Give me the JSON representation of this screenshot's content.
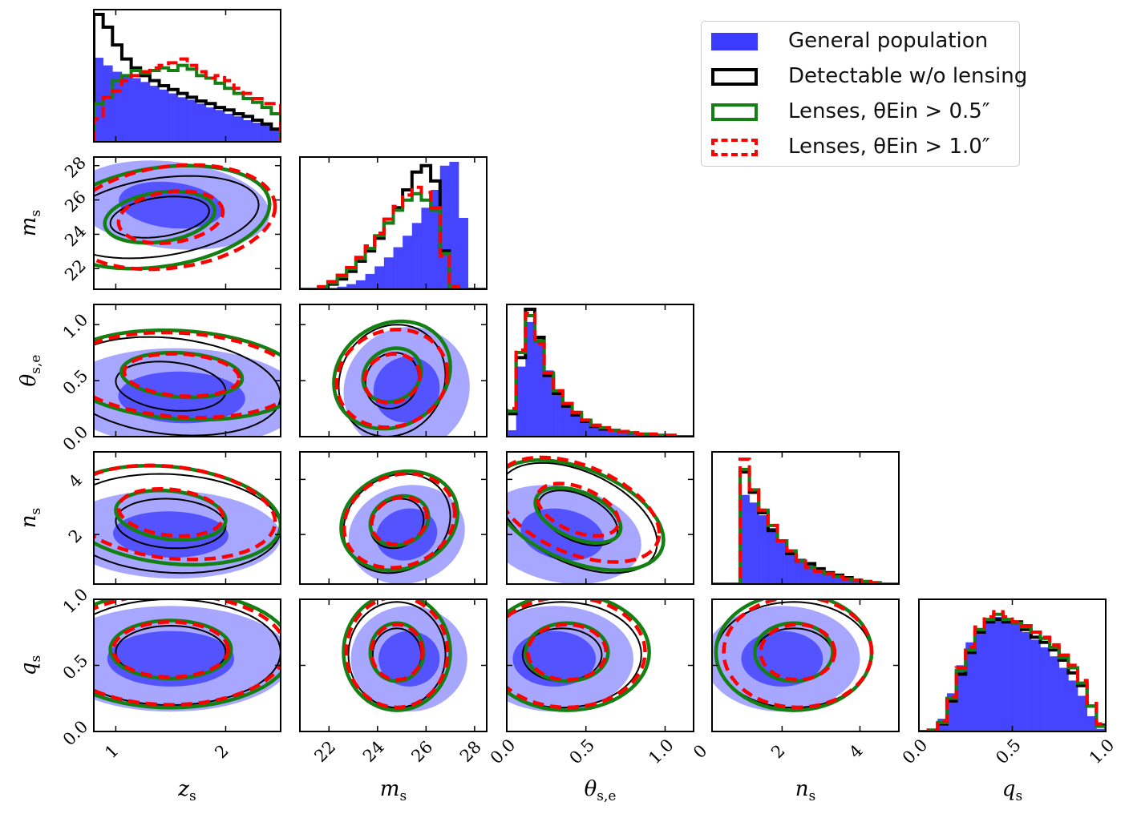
{
  "legend": [
    {
      "label": "General population",
      "color": "#3b3bff",
      "style": "filled"
    },
    {
      "label": "Detectable w/o lensing",
      "color": "#000000",
      "style": "solid"
    },
    {
      "label": "Lenses, θEin > 0.5″",
      "color": "#128012",
      "style": "solid"
    },
    {
      "label": "Lenses, θEin > 1.0″",
      "color": "#ff0000",
      "style": "dashed"
    }
  ],
  "chart_data": {
    "type": "corner",
    "params": [
      "z_s",
      "m_s",
      "θ_s,e",
      "n_s",
      "q_s"
    ],
    "axis_labels": {
      "x": [
        "zs",
        "ms",
        "θs,e",
        "ns",
        "qs"
      ],
      "y": [
        "",
        "ms",
        "θs,e",
        "ns",
        "qs"
      ]
    },
    "ranges": [
      [
        0.8,
        2.5
      ],
      [
        20.8,
        28.5
      ],
      [
        0.0,
        1.18
      ],
      [
        0.2,
        5.0
      ],
      [
        0.0,
        1.0
      ]
    ],
    "ticks": [
      {
        "values": [
          1,
          2
        ],
        "labels": [
          "1",
          "2"
        ]
      },
      {
        "values": [
          22,
          24,
          26,
          28
        ],
        "labels": [
          "22",
          "24",
          "26",
          "28"
        ]
      },
      {
        "values": [
          0.0,
          0.5,
          1.0
        ],
        "labels": [
          "0.0",
          "0.5",
          "1.0"
        ]
      },
      {
        "values": [
          0,
          2,
          4
        ],
        "labels": [
          "0",
          "2",
          "4"
        ]
      },
      {
        "values": [
          0.0,
          0.5,
          1.0
        ],
        "labels": [
          "0.0",
          "0.5",
          "1.0"
        ]
      }
    ],
    "y_ticks": [
      null,
      {
        "values": [
          22,
          24,
          26,
          28
        ],
        "labels": [
          "22",
          "24",
          "26",
          "28"
        ]
      },
      {
        "values": [
          0.0,
          0.5,
          1.0
        ],
        "labels": [
          "0.0",
          "0.5",
          "1.0"
        ]
      },
      {
        "values": [
          2,
          4
        ],
        "labels": [
          "2",
          "4"
        ]
      },
      {
        "values": [
          0.0,
          0.5,
          1.0
        ],
        "labels": [
          "0.0",
          "0.5",
          "1.0"
        ]
      }
    ],
    "series": [
      {
        "name": "General population",
        "color": "#3b3bff",
        "style": "filled"
      },
      {
        "name": "Detectable w/o lensing",
        "color": "#000000",
        "style": "step"
      },
      {
        "name": "Lenses, θEin > 0.5″",
        "color": "#128012",
        "style": "step"
      },
      {
        "name": "Lenses, θEin > 1.0″",
        "color": "#ff0000",
        "style": "dashed-step"
      }
    ],
    "histograms": [
      {
        "param": "z_s",
        "bins": 20,
        "General population": [
          0.66,
          0.6,
          0.55,
          0.52,
          0.5,
          0.47,
          0.44,
          0.41,
          0.38,
          0.35,
          0.33,
          0.3,
          0.27,
          0.25,
          0.22,
          0.2,
          0.17,
          0.15,
          0.13,
          0.1
        ],
        "Detectable w/o lensing": [
          1.0,
          0.9,
          0.76,
          0.65,
          0.58,
          0.52,
          0.48,
          0.44,
          0.41,
          0.38,
          0.35,
          0.32,
          0.3,
          0.27,
          0.25,
          0.22,
          0.2,
          0.17,
          0.14,
          0.1
        ],
        "Lenses, θEin > 0.5″": [
          0.3,
          0.35,
          0.48,
          0.52,
          0.56,
          0.54,
          0.56,
          0.58,
          0.56,
          0.6,
          0.57,
          0.52,
          0.5,
          0.46,
          0.42,
          0.38,
          0.34,
          0.31,
          0.27,
          0.22
        ],
        "Lenses, θEin > 1.0″": [
          0.18,
          0.35,
          0.4,
          0.48,
          0.52,
          0.55,
          0.58,
          0.6,
          0.62,
          0.65,
          0.6,
          0.55,
          0.5,
          0.52,
          0.48,
          0.42,
          0.38,
          0.34,
          0.3,
          0.3
        ]
      },
      {
        "param": "m_s",
        "bins": 20,
        "General population": [
          0.0,
          0.0,
          0.0,
          0.01,
          0.02,
          0.04,
          0.07,
          0.12,
          0.18,
          0.25,
          0.33,
          0.42,
          0.52,
          0.64,
          0.78,
          0.97,
          1.0,
          0.56,
          0.0,
          0.0
        ],
        "Detectable w/o lensing": [
          0.0,
          0.0,
          0.01,
          0.04,
          0.08,
          0.14,
          0.22,
          0.3,
          0.4,
          0.52,
          0.64,
          0.78,
          0.92,
          0.97,
          0.85,
          0.3,
          0.02,
          0.0,
          0.0,
          0.0
        ],
        "Lenses, θEin > 0.5″": [
          0.0,
          0.0,
          0.02,
          0.05,
          0.1,
          0.16,
          0.24,
          0.32,
          0.42,
          0.52,
          0.62,
          0.7,
          0.75,
          0.7,
          0.62,
          0.28,
          0.02,
          0.0,
          0.0,
          0.0
        ],
        "Lenses, θEin > 1.0″": [
          0.0,
          0.0,
          0.02,
          0.06,
          0.11,
          0.17,
          0.25,
          0.34,
          0.44,
          0.55,
          0.65,
          0.74,
          0.8,
          0.76,
          0.64,
          0.26,
          0.02,
          0.0,
          0.0,
          0.0
        ]
      },
      {
        "param": "θ_s,e",
        "bins": 20,
        "General population": [
          0.05,
          0.55,
          0.9,
          0.78,
          0.52,
          0.36,
          0.25,
          0.18,
          0.12,
          0.09,
          0.07,
          0.05,
          0.04,
          0.03,
          0.02,
          0.02,
          0.01,
          0.01,
          0.0,
          0.0
        ],
        "Detectable w/o lensing": [
          0.18,
          0.62,
          1.0,
          0.78,
          0.48,
          0.34,
          0.24,
          0.17,
          0.12,
          0.08,
          0.06,
          0.05,
          0.04,
          0.03,
          0.02,
          0.02,
          0.01,
          0.01,
          0.0,
          0.0
        ],
        "Lenses, θEin > 0.5″": [
          0.2,
          0.66,
          0.95,
          0.75,
          0.5,
          0.36,
          0.26,
          0.19,
          0.13,
          0.09,
          0.07,
          0.05,
          0.04,
          0.03,
          0.02,
          0.02,
          0.01,
          0.01,
          0.0,
          0.0
        ],
        "Lenses, θEin > 1.0″": [
          0.22,
          0.68,
          0.97,
          0.73,
          0.5,
          0.36,
          0.26,
          0.19,
          0.13,
          0.09,
          0.07,
          0.05,
          0.04,
          0.03,
          0.02,
          0.02,
          0.01,
          0.01,
          0.0,
          0.0
        ]
      },
      {
        "param": "n_s",
        "bins": 20,
        "General population": [
          0.0,
          0.0,
          0.0,
          0.7,
          0.64,
          0.54,
          0.44,
          0.34,
          0.26,
          0.2,
          0.15,
          0.11,
          0.08,
          0.06,
          0.04,
          0.03,
          0.02,
          0.01,
          0.0,
          0.0
        ],
        "Detectable w/o lensing": [
          0.0,
          0.0,
          0.0,
          0.88,
          0.72,
          0.56,
          0.42,
          0.34,
          0.24,
          0.18,
          0.16,
          0.12,
          0.09,
          0.07,
          0.05,
          0.03,
          0.02,
          0.01,
          0.0,
          0.0
        ],
        "Lenses, θEin > 0.5″": [
          0.0,
          0.0,
          0.0,
          0.9,
          0.74,
          0.58,
          0.46,
          0.34,
          0.26,
          0.18,
          0.13,
          0.1,
          0.08,
          0.06,
          0.04,
          0.03,
          0.02,
          0.01,
          0.0,
          0.0
        ],
        "Lenses, θEin > 1.0″": [
          0.0,
          0.0,
          0.0,
          0.98,
          0.74,
          0.58,
          0.46,
          0.34,
          0.26,
          0.18,
          0.13,
          0.1,
          0.08,
          0.06,
          0.04,
          0.03,
          0.02,
          0.01,
          0.0,
          0.0
        ]
      },
      {
        "param": "q_s",
        "bins": 20,
        "General population": [
          0.0,
          0.02,
          0.1,
          0.3,
          0.52,
          0.7,
          0.8,
          0.86,
          0.9,
          0.89,
          0.84,
          0.78,
          0.72,
          0.66,
          0.59,
          0.5,
          0.4,
          0.28,
          0.12,
          0.02
        ],
        "Detectable w/o lensing": [
          0.0,
          0.01,
          0.06,
          0.24,
          0.45,
          0.62,
          0.78,
          0.86,
          0.88,
          0.86,
          0.86,
          0.8,
          0.74,
          0.7,
          0.64,
          0.56,
          0.46,
          0.36,
          0.2,
          0.05
        ],
        "Lenses, θEin > 0.5″": [
          0.0,
          0.01,
          0.07,
          0.26,
          0.48,
          0.64,
          0.8,
          0.88,
          0.92,
          0.88,
          0.85,
          0.82,
          0.78,
          0.73,
          0.66,
          0.58,
          0.5,
          0.38,
          0.2,
          0.04
        ],
        "Lenses, θEin > 1.0″": [
          0.0,
          0.01,
          0.08,
          0.27,
          0.5,
          0.66,
          0.82,
          0.9,
          0.94,
          0.9,
          0.86,
          0.83,
          0.78,
          0.74,
          0.68,
          0.6,
          0.52,
          0.4,
          0.22,
          0.06
        ]
      }
    ],
    "contours": [
      {
        "i": 1,
        "j": 0,
        "general": {
          "c1": [
            1.5,
            25.7
          ],
          "s": [
            0.45,
            1.3
          ],
          "r": -0.2
        },
        "detectable": {
          "c1": [
            1.4,
            25.0
          ],
          "s": [
            0.45,
            1.2
          ],
          "r": 0.3
        },
        "lens05": {
          "c1": [
            1.4,
            25.0
          ],
          "s": [
            0.5,
            1.5
          ],
          "r": 0.25
        },
        "lens10": {
          "c1": [
            1.5,
            25.0
          ],
          "s": [
            0.5,
            1.6
          ],
          "r": 0.2
        }
      },
      {
        "i": 2,
        "j": 0,
        "general": {
          "c1": [
            1.6,
            0.35
          ],
          "s": [
            0.55,
            0.22
          ],
          "r": -0.05
        },
        "detectable": {
          "c1": [
            1.5,
            0.45
          ],
          "s": [
            0.5,
            0.22
          ],
          "r": -0.2
        },
        "lens05": {
          "c1": [
            1.6,
            0.55
          ],
          "s": [
            0.55,
            0.2
          ],
          "r": -0.15
        },
        "lens10": {
          "c1": [
            1.6,
            0.55
          ],
          "s": [
            0.55,
            0.2
          ],
          "r": -0.15
        }
      },
      {
        "i": 2,
        "j": 1,
        "general": {
          "c1": [
            25.2,
            0.42
          ],
          "s": [
            1.3,
            0.28
          ],
          "r": 0.05
        },
        "detectable": {
          "c1": [
            24.6,
            0.5
          ],
          "s": [
            1.1,
            0.25
          ],
          "r": 0.1
        },
        "lens05": {
          "c1": [
            24.6,
            0.55
          ],
          "s": [
            1.2,
            0.24
          ],
          "r": 0.15
        },
        "lens10": {
          "c1": [
            24.6,
            0.52
          ],
          "s": [
            1.2,
            0.23
          ],
          "r": 0.1
        }
      },
      {
        "i": 3,
        "j": 0,
        "general": {
          "c1": [
            1.5,
            2.0
          ],
          "s": [
            0.5,
            0.8
          ],
          "r": -0.05
        },
        "detectable": {
          "c1": [
            1.5,
            2.4
          ],
          "s": [
            0.5,
            0.9
          ],
          "r": -0.1
        },
        "lens05": {
          "c1": [
            1.5,
            2.7
          ],
          "s": [
            0.5,
            0.9
          ],
          "r": -0.2
        },
        "lens10": {
          "c1": [
            1.5,
            2.8
          ],
          "s": [
            0.5,
            0.9
          ],
          "r": -0.2
        }
      },
      {
        "i": 3,
        "j": 1,
        "general": {
          "c1": [
            25.2,
            2.0
          ],
          "s": [
            1.2,
            0.9
          ],
          "r": 0.1
        },
        "detectable": {
          "c1": [
            24.8,
            2.4
          ],
          "s": [
            1.1,
            0.9
          ],
          "r": 0.15
        },
        "lens05": {
          "c1": [
            24.9,
            2.5
          ],
          "s": [
            1.2,
            0.9
          ],
          "r": 0.15
        },
        "lens10": {
          "c1": [
            24.9,
            2.5
          ],
          "s": [
            1.2,
            0.9
          ],
          "r": 0.15
        }
      },
      {
        "i": 3,
        "j": 2,
        "general": {
          "c1": [
            0.35,
            2.0
          ],
          "s": [
            0.25,
            0.9
          ],
          "r": -0.2
        },
        "detectable": {
          "c1": [
            0.45,
            2.6
          ],
          "s": [
            0.25,
            1.0
          ],
          "r": -0.45
        },
        "lens05": {
          "c1": [
            0.45,
            2.7
          ],
          "s": [
            0.27,
            1.0
          ],
          "r": -0.45
        },
        "lens10": {
          "c1": [
            0.45,
            2.9
          ],
          "s": [
            0.27,
            1.0
          ],
          "r": -0.45
        }
      },
      {
        "i": 4,
        "j": 0,
        "general": {
          "c1": [
            1.5,
            0.55
          ],
          "s": [
            0.55,
            0.2
          ],
          "r": 0.0
        },
        "detectable": {
          "c1": [
            1.5,
            0.6
          ],
          "s": [
            0.5,
            0.2
          ],
          "r": 0.0
        },
        "lens05": {
          "c1": [
            1.5,
            0.62
          ],
          "s": [
            0.55,
            0.22
          ],
          "r": 0.0
        },
        "lens10": {
          "c1": [
            1.5,
            0.62
          ],
          "s": [
            0.55,
            0.22
          ],
          "r": 0.0
        }
      },
      {
        "i": 4,
        "j": 1,
        "general": {
          "c1": [
            25.3,
            0.55
          ],
          "s": [
            1.2,
            0.2
          ],
          "r": 0.0
        },
        "detectable": {
          "c1": [
            24.8,
            0.58
          ],
          "s": [
            1.0,
            0.2
          ],
          "r": 0.0
        },
        "lens05": {
          "c1": [
            24.8,
            0.6
          ],
          "s": [
            1.1,
            0.22
          ],
          "r": 0.0
        },
        "lens10": {
          "c1": [
            24.8,
            0.6
          ],
          "s": [
            1.1,
            0.22
          ],
          "r": 0.0
        }
      },
      {
        "i": 4,
        "j": 2,
        "general": {
          "c1": [
            0.3,
            0.55
          ],
          "s": [
            0.25,
            0.2
          ],
          "r": 0.0
        },
        "detectable": {
          "c1": [
            0.35,
            0.58
          ],
          "s": [
            0.25,
            0.2
          ],
          "r": 0.0
        },
        "lens05": {
          "c1": [
            0.38,
            0.6
          ],
          "s": [
            0.26,
            0.22
          ],
          "r": 0.0
        },
        "lens10": {
          "c1": [
            0.38,
            0.6
          ],
          "s": [
            0.26,
            0.22
          ],
          "r": 0.0
        }
      },
      {
        "i": 4,
        "j": 3,
        "general": {
          "c1": [
            2.0,
            0.55
          ],
          "s": [
            1.0,
            0.2
          ],
          "r": 0.0
        },
        "detectable": {
          "c1": [
            2.3,
            0.58
          ],
          "s": [
            1.0,
            0.2
          ],
          "r": 0.0
        },
        "lens05": {
          "c1": [
            2.3,
            0.6
          ],
          "s": [
            1.0,
            0.22
          ],
          "r": 0.0
        },
        "lens10": {
          "c1": [
            2.4,
            0.6
          ],
          "s": [
            1.0,
            0.22
          ],
          "r": 0.0
        }
      }
    ]
  }
}
